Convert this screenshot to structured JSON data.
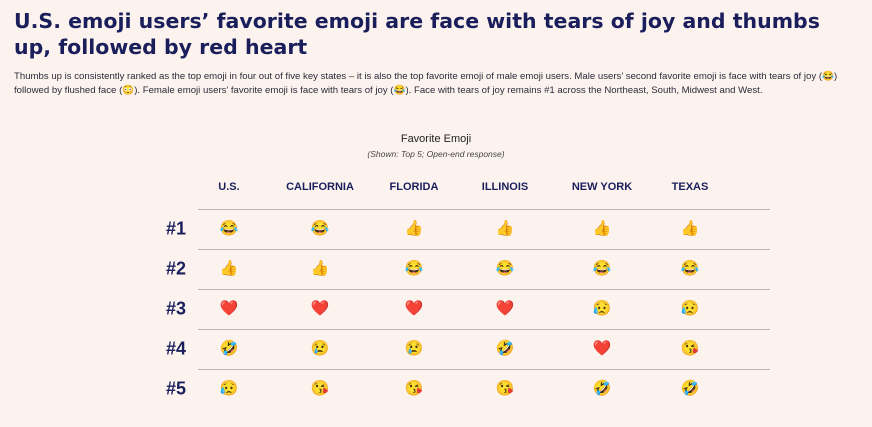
{
  "header": {
    "title": "U.S. emoji users’ favorite emoji are face with tears of joy and thumbs up, followed by red heart",
    "subtitle": "Thumbs up is consistently ranked as the top emoji in four out of five key states – it is also the top favorite emoji of male emoji users. Male users’ second favorite emoji is face with tears of joy (😂) followed by flushed face (😳). Female emoji users’ favorite emoji is face with tears of joy (😂). Face with tears of joy remains #1 across the Northeast, South, Midwest and West."
  },
  "chart_data": {
    "type": "table",
    "title": "Favorite Emoji",
    "subtitle": "(Shown: Top 5; Open-end response)",
    "columns": [
      "U.S.",
      "CALIFORNIA",
      "FLORIDA",
      "ILLINOIS",
      "NEW YORK",
      "TEXAS"
    ],
    "rows": [
      "#1",
      "#2",
      "#3",
      "#4",
      "#5"
    ],
    "cells": [
      [
        "😂",
        "😂",
        "👍",
        "👍",
        "👍",
        "👍"
      ],
      [
        "👍",
        "👍",
        "😂",
        "😂",
        "😂",
        "😂"
      ],
      [
        "❤️",
        "❤️",
        "❤️",
        "❤️",
        "😥",
        "😥"
      ],
      [
        "🤣",
        "😢",
        "😢",
        "🤣",
        "❤️",
        "😘"
      ],
      [
        "😥",
        "😘",
        "😘",
        "😘",
        "🤣",
        "🤣"
      ]
    ]
  }
}
